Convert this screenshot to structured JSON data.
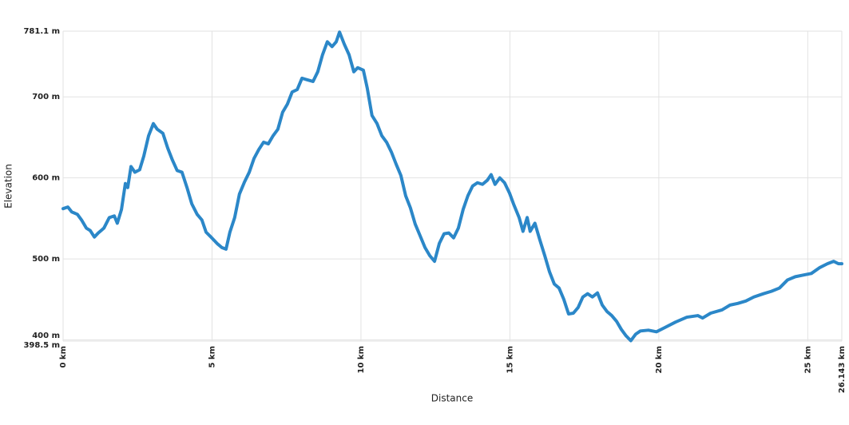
{
  "chart_data": {
    "type": "line",
    "xlabel": "Distance",
    "ylabel": "Elevation",
    "color": "#2b87c8",
    "grid": true,
    "xlim": [
      0,
      26.143
    ],
    "ylim": [
      398.5,
      781.1
    ],
    "xticks": [
      {
        "value": 0,
        "label": "0 km"
      },
      {
        "value": 5,
        "label": "5 km"
      },
      {
        "value": 10,
        "label": "10 km"
      },
      {
        "value": 15,
        "label": "15 km"
      },
      {
        "value": 20,
        "label": "20 km"
      },
      {
        "value": 25,
        "label": "25 km"
      },
      {
        "value": 26.143,
        "label": "26.143 km"
      }
    ],
    "yticks": [
      {
        "value": 398.5,
        "label": "398.5 m"
      },
      {
        "value": 400,
        "label": "400 m"
      },
      {
        "value": 500,
        "label": "500 m"
      },
      {
        "value": 600,
        "label": "600 m"
      },
      {
        "value": 700,
        "label": "700 m"
      },
      {
        "value": 781.1,
        "label": "781.1 m"
      }
    ],
    "x": [
      0,
      0.16,
      0.29,
      0.48,
      0.62,
      0.78,
      0.91,
      1.05,
      1.18,
      1.37,
      1.55,
      1.72,
      1.82,
      1.96,
      2.09,
      2.17,
      2.28,
      2.41,
      2.57,
      2.71,
      2.87,
      3.03,
      3.16,
      3.35,
      3.51,
      3.67,
      3.83,
      3.99,
      4.16,
      4.32,
      4.5,
      4.66,
      4.8,
      4.99,
      5.17,
      5.33,
      5.47,
      5.6,
      5.76,
      5.92,
      6.09,
      6.25,
      6.41,
      6.57,
      6.73,
      6.89,
      7.05,
      7.21,
      7.37,
      7.53,
      7.69,
      7.86,
      8.02,
      8.2,
      8.39,
      8.55,
      8.71,
      8.87,
      9.03,
      9.17,
      9.28,
      9.44,
      9.6,
      9.76,
      9.89,
      10.08,
      10.21,
      10.37,
      10.54,
      10.7,
      10.86,
      11.02,
      11.18,
      11.34,
      11.5,
      11.66,
      11.82,
      11.98,
      12.15,
      12.31,
      12.47,
      12.63,
      12.79,
      12.95,
      13.11,
      13.27,
      13.43,
      13.59,
      13.75,
      13.91,
      14.08,
      14.24,
      14.37,
      14.5,
      14.66,
      14.82,
      14.99,
      15.12,
      15.31,
      15.44,
      15.58,
      15.68,
      15.84,
      16.0,
      16.17,
      16.33,
      16.49,
      16.65,
      16.81,
      16.97,
      17.13,
      17.29,
      17.45,
      17.61,
      17.77,
      17.94,
      18.1,
      18.26,
      18.42,
      18.58,
      18.74,
      18.9,
      19.06,
      19.22,
      19.38,
      19.65,
      19.92,
      20.19,
      20.56,
      20.94,
      21.31,
      21.47,
      21.74,
      22.12,
      22.39,
      22.65,
      22.92,
      23.19,
      23.51,
      23.78,
      24.05,
      24.32,
      24.58,
      24.85,
      25.12,
      25.39,
      25.66,
      25.87,
      26.03,
      26.143
    ],
    "values": [
      562,
      564,
      558,
      555,
      548,
      538,
      535,
      527,
      532,
      538,
      551,
      553,
      544,
      561,
      593,
      588,
      614,
      607,
      610,
      627,
      652,
      667,
      660,
      655,
      637,
      622,
      609,
      607,
      588,
      568,
      555,
      548,
      533,
      526,
      519,
      514,
      512,
      533,
      551,
      580,
      595,
      607,
      624,
      635,
      644,
      642,
      652,
      660,
      681,
      691,
      706,
      709,
      723,
      721,
      719,
      731,
      752,
      768,
      762,
      768,
      780,
      765,
      752,
      731,
      736,
      733,
      711,
      677,
      667,
      652,
      644,
      632,
      617,
      603,
      578,
      563,
      543,
      529,
      514,
      504,
      497,
      519,
      531,
      532,
      526,
      538,
      561,
      578,
      590,
      594,
      592,
      597,
      604,
      592,
      600,
      594,
      581,
      568,
      551,
      534,
      551,
      534,
      544,
      524,
      504,
      484,
      469,
      464,
      450,
      432,
      433,
      440,
      453,
      457,
      453,
      458,
      443,
      435,
      430,
      423,
      413,
      405,
      399,
      407,
      411,
      412,
      410,
      415,
      422,
      428,
      430,
      427,
      433,
      437,
      443,
      445,
      448,
      453,
      457,
      460,
      464,
      474,
      478,
      480,
      482,
      489,
      494,
      497,
      494,
      494
    ]
  }
}
